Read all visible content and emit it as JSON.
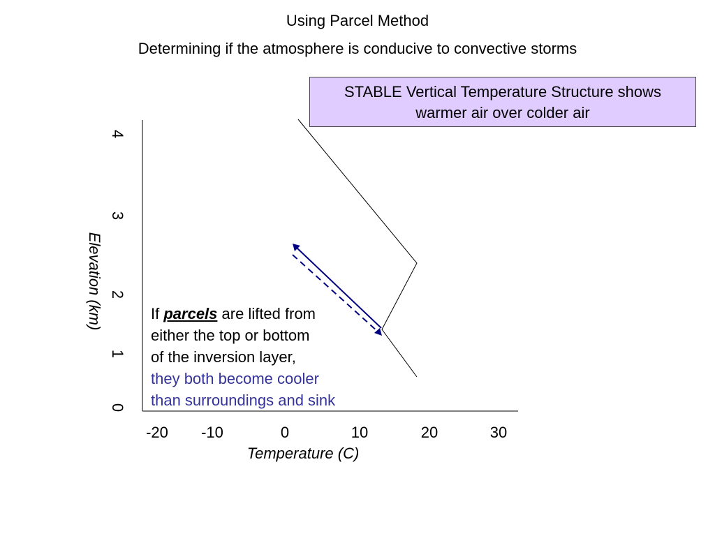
{
  "header": {
    "title": "Using Parcel Method",
    "subtitle": "Determining if the atmosphere is conducive to convective storms"
  },
  "callout": {
    "line1": "STABLE Vertical Temperature Structure shows",
    "line2": "warmer air over colder air"
  },
  "axes": {
    "y_label": "Elevation (km)",
    "y_ticks": [
      "4",
      "3",
      "2",
      "1",
      "0"
    ],
    "x_label": "Temperature (C)",
    "x_ticks": [
      "-20",
      "-10",
      "0",
      "10",
      "20",
      "30"
    ]
  },
  "note": {
    "prefix": "If ",
    "emphasis": "parcels",
    "rest1": " are lifted from",
    "line2": "either the top or bottom",
    "line3": "of the inversion layer,",
    "line4": "they both become cooler",
    "line5": "than surroundings and sink"
  },
  "colors": {
    "callout_fill": "#e0ccff",
    "parcel_arrow": "#000080",
    "highlight_text": "#333399"
  }
}
